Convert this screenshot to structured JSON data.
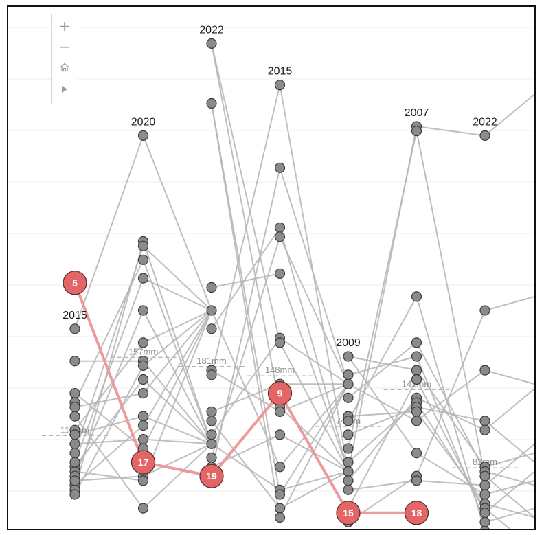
{
  "zoom_controls": {
    "zoom_in": "+",
    "zoom_out": "−",
    "home": "⌂",
    "play": "▶"
  },
  "colors": {
    "line": "#b4b4b4",
    "node_fill": "#8b8b8b",
    "node_stroke": "#3a3a3a",
    "highlight_line": "#ec9a9a",
    "highlight_fill": "#e46565",
    "median_line": "#b5b5b5",
    "median_text": "#8e8e8e",
    "year_text": "#1b1b1b",
    "grid": "#ececec"
  },
  "chart_data": {
    "type": "scatter",
    "title": "",
    "xlabel": "",
    "ylabel": "",
    "columns": [
      {
        "year": "2015",
        "median": "118mm",
        "highlight": "5",
        "highlight_rank": 0.46,
        "nodes": [
          0.36,
          0.29,
          0.22,
          0.2,
          0.19,
          0.17,
          0.14,
          0.11,
          0.09,
          0.06,
          0.05,
          0.04,
          0.02,
          0.01,
          0.0,
          0.03,
          0.07,
          0.13
        ]
      },
      {
        "year": "2020",
        "median": "157mm",
        "highlight": "17",
        "highlight_rank": 0.07,
        "nodes": [
          0.78,
          0.55,
          0.54,
          0.51,
          0.47,
          0.4,
          0.33,
          0.29,
          0.28,
          0.25,
          0.22,
          0.17,
          0.15,
          0.12,
          0.1,
          0.04,
          0.03,
          -0.03
        ]
      },
      {
        "year": "2022",
        "median": "181mm",
        "highlight": "19",
        "highlight_rank": 0.04,
        "nodes": [
          0.98,
          0.85,
          0.45,
          0.4,
          0.36,
          0.27,
          0.26,
          0.18,
          0.16,
          0.13,
          0.11,
          0.08,
          0.06,
          0.05
        ]
      },
      {
        "year": "2015",
        "median": "148mm",
        "highlight": "9",
        "highlight_rank": 0.22,
        "nodes": [
          0.89,
          0.71,
          0.58,
          0.56,
          0.48,
          0.34,
          0.33,
          0.24,
          0.19,
          0.18,
          0.13,
          0.06,
          0.01,
          0.0,
          -0.03,
          -0.05
        ]
      },
      {
        "year": "2009",
        "median": "74mm",
        "highlight": "15",
        "highlight_rank": -0.04,
        "nodes": [
          0.3,
          0.26,
          0.24,
          0.21,
          0.17,
          0.16,
          0.13,
          0.1,
          0.07,
          0.05,
          0.03,
          0.01,
          -0.03,
          -0.06
        ]
      },
      {
        "year": "2007",
        "median": "141mm",
        "highlight": "18",
        "highlight_rank": -0.04,
        "nodes": [
          0.8,
          0.79,
          0.43,
          0.33,
          0.3,
          0.27,
          0.25,
          0.21,
          0.2,
          0.19,
          0.18,
          0.16,
          0.09,
          0.04,
          0.03
        ]
      },
      {
        "year": "2022",
        "median": "82mm",
        "highlight": "",
        "highlight_rank": null,
        "nodes": [
          0.78,
          0.4,
          0.27,
          0.16,
          0.14,
          0.06,
          0.05,
          0.04,
          0.02,
          0.0,
          -0.02,
          -0.03,
          -0.04,
          -0.06,
          -0.08
        ]
      }
    ]
  }
}
